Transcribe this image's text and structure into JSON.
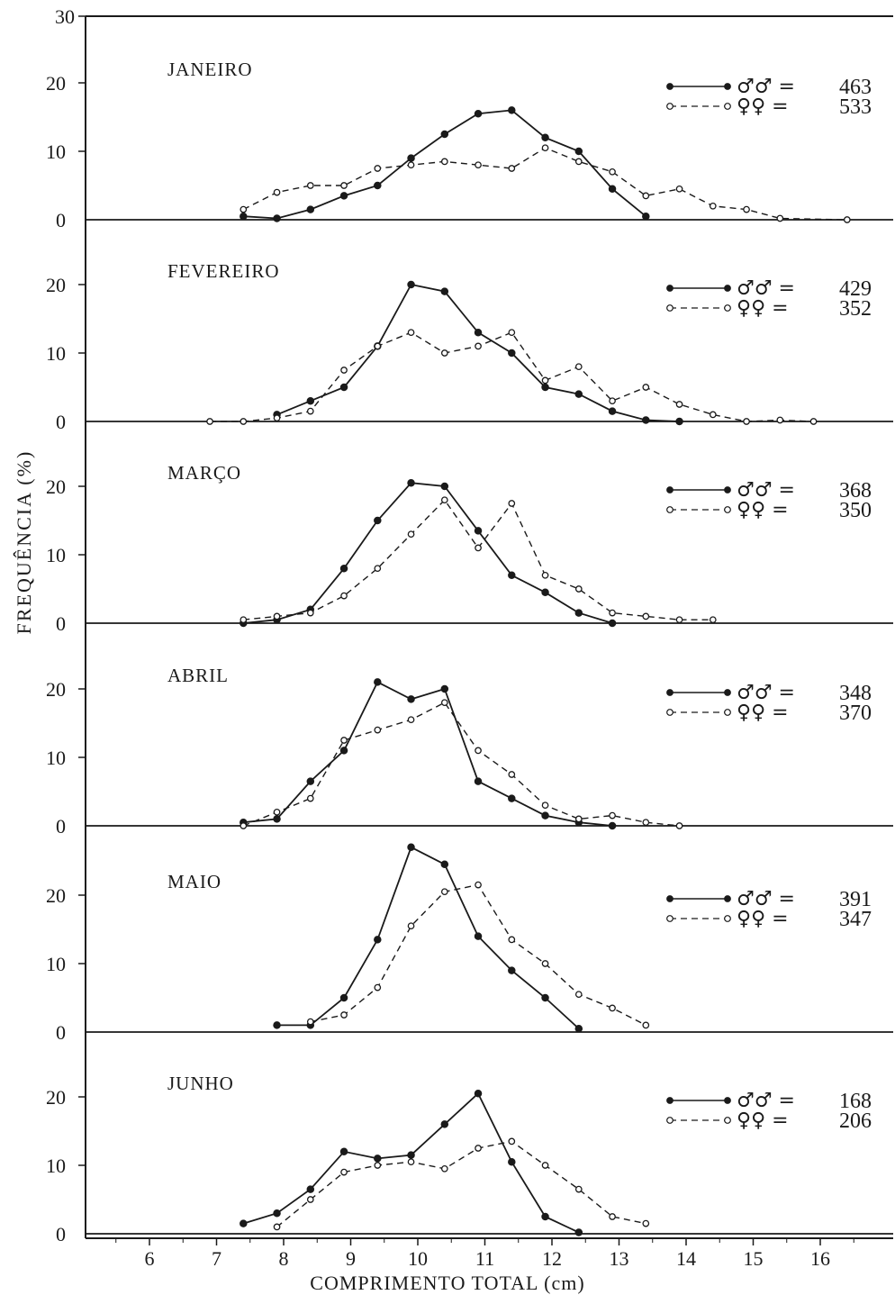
{
  "chart_data": {
    "type": "line",
    "xlabel": "COMPRIMENTO TOTAL (cm)",
    "ylabel": "FREQUÊNCIA (%)",
    "x_ticks": [
      "6",
      "7",
      "8",
      "9",
      "10",
      "11",
      "12",
      "13",
      "14",
      "15",
      "16"
    ],
    "y_ticks": [
      "0",
      "10",
      "20"
    ],
    "top_tick": "30",
    "grid": false,
    "colors": {
      "ink": "#1a1a1a"
    },
    "panels": [
      {
        "title": "JANEIRO",
        "series": [
          {
            "name": "♂♂ =",
            "count": "463",
            "style": "solid",
            "marker": "filled",
            "x": [
              7.4,
              7.9,
              8.4,
              8.9,
              9.4,
              9.9,
              10.4,
              10.9,
              11.4,
              11.9,
              12.4,
              12.9,
              13.4
            ],
            "y": [
              0.5,
              0.2,
              1.5,
              3.5,
              5,
              9,
              12.5,
              15.5,
              16,
              12,
              10,
              4.5,
              0.5
            ]
          },
          {
            "name": "♀♀ =",
            "count": "533",
            "style": "dashed",
            "marker": "open",
            "x": [
              7.4,
              7.9,
              8.4,
              8.9,
              9.4,
              9.9,
              10.4,
              10.9,
              11.4,
              11.9,
              12.4,
              12.9,
              13.4,
              13.9,
              14.4,
              14.9,
              15.4,
              16.4
            ],
            "y": [
              1.5,
              4,
              5,
              5,
              7.5,
              8,
              8.5,
              8,
              7.5,
              10.5,
              8.5,
              7,
              3.5,
              4.5,
              2,
              1.5,
              0.2,
              0
            ]
          }
        ]
      },
      {
        "title": "FEVEREIRO",
        "series": [
          {
            "name": "♂♂ =",
            "count": "429",
            "style": "solid",
            "marker": "filled",
            "x": [
              7.9,
              8.4,
              8.9,
              9.4,
              9.9,
              10.4,
              10.9,
              11.4,
              11.9,
              12.4,
              12.9,
              13.4,
              13.9
            ],
            "y": [
              1,
              3,
              5,
              11,
              20,
              19,
              13,
              10,
              5,
              4,
              1.5,
              0.2,
              0
            ]
          },
          {
            "name": "♀♀ =",
            "count": "352",
            "style": "dashed",
            "marker": "open",
            "x": [
              6.9,
              7.4,
              7.9,
              8.4,
              8.9,
              9.4,
              9.9,
              10.4,
              10.9,
              11.4,
              11.9,
              12.4,
              12.9,
              13.4,
              13.9,
              14.4,
              14.9,
              15.4,
              15.9
            ],
            "y": [
              0,
              0,
              0.5,
              1.5,
              7.5,
              11,
              13,
              10,
              11,
              13,
              6,
              8,
              3,
              5,
              2.5,
              1,
              0,
              0.2,
              0
            ]
          }
        ]
      },
      {
        "title": "MARÇO",
        "series": [
          {
            "name": "♂♂ =",
            "count": "368",
            "style": "solid",
            "marker": "filled",
            "x": [
              7.4,
              7.9,
              8.4,
              8.9,
              9.4,
              9.9,
              10.4,
              10.9,
              11.4,
              11.9,
              12.4,
              12.9
            ],
            "y": [
              0,
              0.5,
              2,
              8,
              15,
              20.5,
              20,
              13.5,
              7,
              4.5,
              1.5,
              0
            ]
          },
          {
            "name": "♀♀ =",
            "count": "350",
            "style": "dashed",
            "marker": "open",
            "x": [
              7.4,
              7.9,
              8.4,
              8.9,
              9.4,
              9.9,
              10.4,
              10.9,
              11.4,
              11.9,
              12.4,
              12.9,
              13.4,
              13.9,
              14.4
            ],
            "y": [
              0.5,
              1,
              1.5,
              4,
              8,
              13,
              18,
              11,
              17.5,
              7,
              5,
              1.5,
              1,
              0.5,
              0.5
            ]
          }
        ]
      },
      {
        "title": "ABRIL",
        "series": [
          {
            "name": "♂♂ =",
            "count": "348",
            "style": "solid",
            "marker": "filled",
            "x": [
              7.4,
              7.9,
              8.4,
              8.9,
              9.4,
              9.9,
              10.4,
              10.9,
              11.4,
              11.9,
              12.4,
              12.9
            ],
            "y": [
              0.5,
              1,
              6.5,
              11,
              21,
              18.5,
              20,
              6.5,
              4,
              1.5,
              0.5,
              0
            ]
          },
          {
            "name": "♀♀ =",
            "count": "370",
            "style": "dashed",
            "marker": "open",
            "x": [
              7.4,
              7.9,
              8.4,
              8.9,
              9.4,
              9.9,
              10.4,
              10.9,
              11.4,
              11.9,
              12.4,
              12.9,
              13.4,
              13.9
            ],
            "y": [
              0,
              2,
              4,
              12.5,
              14,
              15.5,
              18,
              11,
              7.5,
              3,
              1,
              1.5,
              0.5,
              0
            ]
          }
        ]
      },
      {
        "title": "MAIO",
        "series": [
          {
            "name": "♂♂ =",
            "count": "391",
            "style": "solid",
            "marker": "filled",
            "x": [
              7.9,
              8.4,
              8.9,
              9.4,
              9.9,
              10.4,
              10.9,
              11.4,
              11.9,
              12.4
            ],
            "y": [
              1,
              1,
              5,
              13.5,
              27,
              24.5,
              14,
              9,
              5,
              0.5
            ]
          },
          {
            "name": "♀♀ =",
            "count": "347",
            "style": "dashed",
            "marker": "open",
            "x": [
              8.4,
              8.9,
              9.4,
              9.9,
              10.4,
              10.9,
              11.4,
              11.9,
              12.4,
              12.9,
              13.4
            ],
            "y": [
              1.5,
              2.5,
              6.5,
              15.5,
              20.5,
              21.5,
              13.5,
              10,
              5.5,
              3.5,
              1
            ]
          }
        ]
      },
      {
        "title": "JUNHO",
        "series": [
          {
            "name": "♂♂ =",
            "count": "168",
            "style": "solid",
            "marker": "filled",
            "x": [
              7.4,
              7.9,
              8.4,
              8.9,
              9.4,
              9.9,
              10.4,
              10.9,
              11.4,
              11.9,
              12.4
            ],
            "y": [
              1.5,
              3,
              6.5,
              12,
              11,
              11.5,
              16,
              20.5,
              10.5,
              2.5,
              0.2
            ]
          },
          {
            "name": "♀♀ =",
            "count": "206",
            "style": "dashed",
            "marker": "open",
            "x": [
              7.9,
              8.4,
              8.9,
              9.4,
              9.9,
              10.4,
              10.9,
              11.4,
              11.9,
              12.4,
              12.9,
              13.4
            ],
            "y": [
              1,
              5,
              9,
              10,
              10.5,
              9.5,
              12.5,
              13.5,
              10,
              6.5,
              2.5,
              1.5
            ]
          }
        ]
      }
    ]
  }
}
